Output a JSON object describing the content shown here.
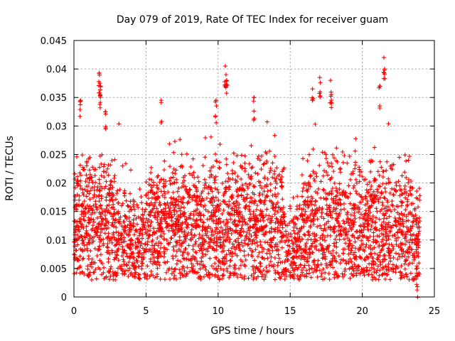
{
  "chart_data": {
    "type": "scatter",
    "title": "Day 079 of 2019, Rate Of TEC Index for receiver guam",
    "xlabel": "GPS time / hours",
    "ylabel": "ROTI / TECUs",
    "xlim": [
      0,
      25
    ],
    "ylim": [
      0,
      0.045
    ],
    "xticks": [
      0,
      5,
      10,
      15,
      20,
      25
    ],
    "yticks": [
      0,
      0.005,
      0.01,
      0.015,
      0.02,
      0.025,
      0.03,
      0.035,
      0.04,
      0.045
    ],
    "xtick_labels": [
      "0",
      "5",
      "10",
      "15",
      "20",
      "25"
    ],
    "ytick_labels": [
      "0",
      "0.005",
      "0.01",
      "0.015",
      "0.02",
      "0.025",
      "0.03",
      "0.035",
      "0.04",
      "0.045"
    ],
    "grid": true,
    "marker": "+",
    "color": "#ff0000",
    "series": [
      {
        "name": "ROTI",
        "x_range": [
          0,
          24
        ],
        "n_points": 3400,
        "baseline_range": [
          0.003,
          0.025
        ],
        "peaks": [
          {
            "x": 0.45,
            "y": 0.0345
          },
          {
            "x": 1.75,
            "y": 0.0393
          },
          {
            "x": 1.8,
            "y": 0.0375
          },
          {
            "x": 1.85,
            "y": 0.037
          },
          {
            "x": 2.2,
            "y": 0.0325
          },
          {
            "x": 6.05,
            "y": 0.0345
          },
          {
            "x": 9.85,
            "y": 0.0345
          },
          {
            "x": 10.5,
            "y": 0.0405
          },
          {
            "x": 10.55,
            "y": 0.039
          },
          {
            "x": 10.6,
            "y": 0.038
          },
          {
            "x": 12.5,
            "y": 0.035
          },
          {
            "x": 16.55,
            "y": 0.0365
          },
          {
            "x": 17.05,
            "y": 0.0385
          },
          {
            "x": 17.8,
            "y": 0.038
          },
          {
            "x": 17.85,
            "y": 0.0355
          },
          {
            "x": 21.2,
            "y": 0.037
          },
          {
            "x": 21.5,
            "y": 0.042
          },
          {
            "x": 21.55,
            "y": 0.04
          },
          {
            "x": 23.8,
            "y": 0.0038
          }
        ]
      }
    ]
  }
}
